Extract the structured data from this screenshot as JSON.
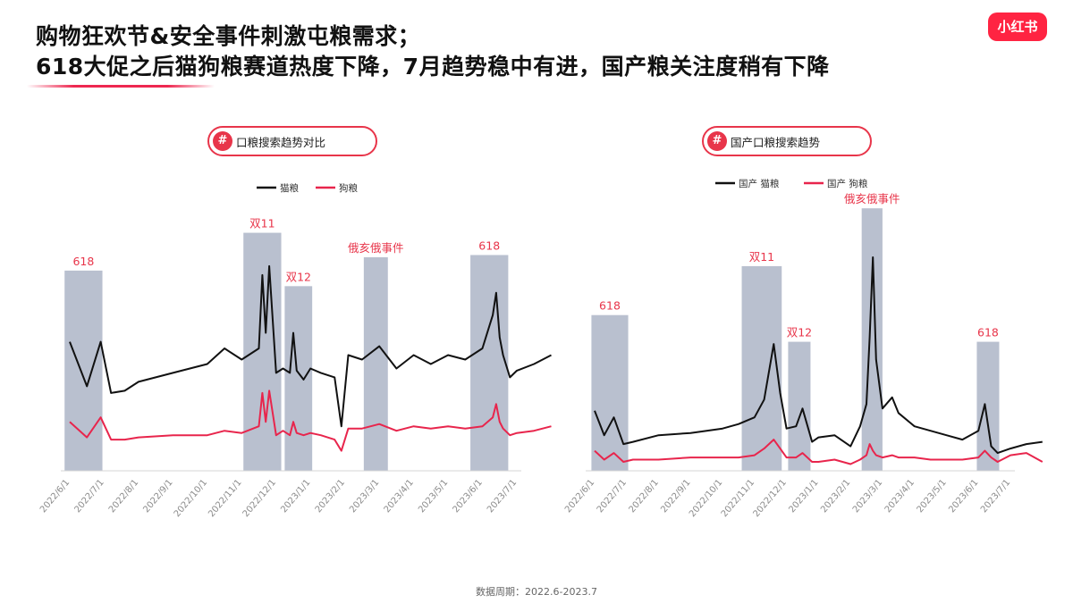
{
  "header": {
    "title_line1": "购物狂欢节&安全事件刺激屯粮需求；",
    "title_line2": "618大促之后猫狗粮赛道热度下降，7月趋势稳中有进，国产粮关注度稍有下降",
    "logo_text": "小红书"
  },
  "colors": {
    "cat": "#111111",
    "dog": "#e8254c",
    "band": "#b9c0cf",
    "accent": "#e8354a"
  },
  "footer": {
    "text": "数据周期：2022.6-2023.7"
  },
  "chart_data": [
    {
      "type": "line",
      "title": "口粮搜索趋势对比",
      "x_ticks": [
        "2022/6/1",
        "2022/7/1",
        "2022/8/1",
        "2022/9/1",
        "2022/10/1",
        "2022/11/1",
        "2022/12/1",
        "2023/1/1",
        "2023/2/1",
        "2023/3/1",
        "2023/4/1",
        "2023/5/1",
        "2023/6/1",
        "2023/7/1"
      ],
      "ylim": [
        0,
        100
      ],
      "grid": false,
      "legend_position": "top",
      "series": [
        {
          "name": "猫粮",
          "x": [
            0,
            0.5,
            0.9,
            1.2,
            1.6,
            2,
            3,
            4,
            4.5,
            5,
            5.5,
            5.6,
            5.7,
            5.8,
            6,
            6.2,
            6.4,
            6.5,
            6.6,
            6.8,
            7,
            7.3,
            7.7,
            7.9,
            8.1,
            8.5,
            9,
            9.5,
            10,
            10.5,
            11,
            11.5,
            12,
            12.3,
            12.4,
            12.5,
            12.6,
            12.8,
            13,
            13.5,
            14
          ],
          "values": [
            58,
            38,
            58,
            35,
            36,
            40,
            44,
            48,
            55,
            50,
            55,
            88,
            62,
            92,
            44,
            46,
            44,
            62,
            45,
            41,
            46,
            44,
            42,
            20,
            52,
            50,
            56,
            46,
            52,
            48,
            52,
            50,
            55,
            70,
            80,
            60,
            52,
            42,
            45,
            48,
            52
          ]
        },
        {
          "name": "狗粮",
          "x": [
            0,
            0.5,
            0.9,
            1.2,
            1.6,
            2,
            3,
            4,
            4.5,
            5,
            5.5,
            5.6,
            5.7,
            5.8,
            6,
            6.2,
            6.4,
            6.5,
            6.6,
            6.8,
            7,
            7.3,
            7.7,
            7.9,
            8.1,
            8.5,
            9,
            9.5,
            10,
            10.5,
            11,
            11.5,
            12,
            12.3,
            12.4,
            12.5,
            12.6,
            12.8,
            13,
            13.5,
            14
          ],
          "values": [
            22,
            15,
            24,
            14,
            14,
            15,
            16,
            16,
            18,
            17,
            20,
            35,
            22,
            36,
            16,
            18,
            16,
            22,
            17,
            16,
            17,
            16,
            14,
            9,
            19,
            19,
            21,
            18,
            20,
            19,
            20,
            19,
            20,
            24,
            30,
            22,
            19,
            16,
            17,
            18,
            20
          ]
        }
      ],
      "shaded_regions": [
        {
          "label": "618",
          "x0": -0.15,
          "x1": 0.95,
          "top": 90
        },
        {
          "label": "双11",
          "x0": 5.05,
          "x1": 6.15,
          "top": 107
        },
        {
          "label": "双12",
          "x0": 6.25,
          "x1": 7.05,
          "top": 83
        },
        {
          "label": "俄亥俄事件",
          "x0": 8.55,
          "x1": 9.25,
          "top": 96,
          "label_color": "#e8354a"
        },
        {
          "label": "618",
          "x0": 11.65,
          "x1": 12.75,
          "top": 97
        }
      ]
    },
    {
      "type": "line",
      "title": "国产口粮搜索趋势",
      "x_ticks": [
        "2022/6/1",
        "2022/7/1",
        "2022/8/1",
        "2022/9/1",
        "2022/10/1",
        "2022/11/1",
        "2022/12/1",
        "2023/1/1",
        "2023/2/1",
        "2023/3/1",
        "2023/4/1",
        "2023/5/1",
        "2023/6/1",
        "2023/7/1"
      ],
      "ylim": [
        0,
        100
      ],
      "grid": false,
      "legend_position": "top",
      "series": [
        {
          "name": "国产 猫粮",
          "x": [
            0,
            0.3,
            0.6,
            0.9,
            1.2,
            2,
            3,
            4,
            4.5,
            5,
            5.3,
            5.6,
            5.8,
            6,
            6.3,
            6.5,
            6.8,
            7,
            7.5,
            8,
            8.3,
            8.5,
            8.6,
            8.7,
            8.8,
            9,
            9.3,
            9.5,
            10,
            10.5,
            11,
            11.5,
            12,
            12.2,
            12.4,
            12.6,
            13,
            13.5,
            14
          ],
          "values": [
            27,
            16,
            24,
            12,
            13,
            16,
            17,
            19,
            21,
            24,
            32,
            57,
            35,
            19,
            20,
            28,
            13,
            15,
            16,
            11,
            20,
            30,
            60,
            96,
            50,
            28,
            33,
            26,
            20,
            18,
            16,
            14,
            18,
            30,
            11,
            8,
            10,
            12,
            13
          ]
        },
        {
          "name": "国产 狗粮",
          "x": [
            0,
            0.3,
            0.6,
            0.9,
            1.2,
            2,
            3,
            4,
            4.5,
            5,
            5.3,
            5.6,
            5.8,
            6,
            6.3,
            6.5,
            6.8,
            7,
            7.5,
            8,
            8.3,
            8.5,
            8.6,
            8.7,
            8.8,
            9,
            9.3,
            9.5,
            10,
            10.5,
            11,
            11.5,
            12,
            12.2,
            12.4,
            12.6,
            13,
            13.5,
            14
          ],
          "values": [
            9,
            5,
            8,
            4,
            5,
            5,
            6,
            6,
            6,
            7,
            10,
            14,
            10,
            6,
            6,
            8,
            4,
            4,
            5,
            3,
            5,
            7,
            12,
            9,
            7,
            6,
            7,
            6,
            6,
            5,
            5,
            5,
            6,
            9,
            6,
            4,
            7,
            8,
            4
          ]
        }
      ],
      "shaded_regions": [
        {
          "label": "618",
          "x0": -0.1,
          "x1": 1.05,
          "top": 70
        },
        {
          "label": "双11",
          "x0": 4.6,
          "x1": 5.85,
          "top": 92
        },
        {
          "label": "双12",
          "x0": 6.05,
          "x1": 6.75,
          "top": 58
        },
        {
          "label": "俄亥俄事件",
          "x0": 8.35,
          "x1": 9.0,
          "top": 118,
          "label_color": "#e8354a"
        },
        {
          "label": "618",
          "x0": 11.95,
          "x1": 12.65,
          "top": 58
        }
      ]
    }
  ]
}
